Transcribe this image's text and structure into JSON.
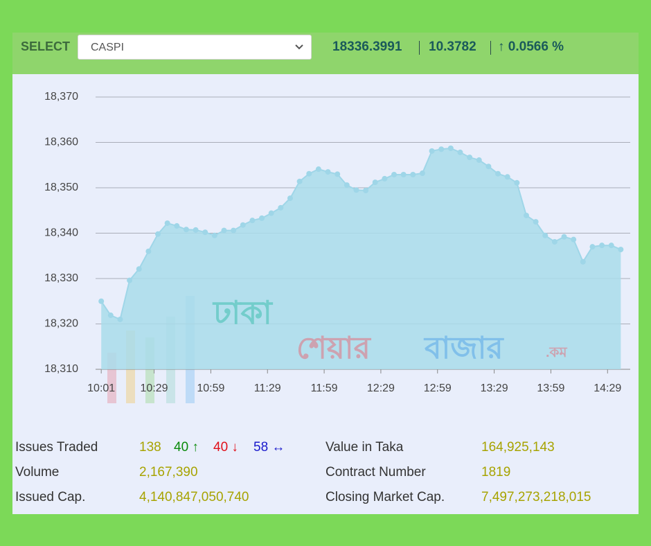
{
  "header": {
    "select_label": "SELECT",
    "selected": "CASPI",
    "index_value": "18336.3991",
    "change": "10.3782",
    "change_pct": "↑ 0.0566 %"
  },
  "chart_data": {
    "type": "area",
    "color": "#a9dcea",
    "line_color": "#9fd6e8",
    "grid": true,
    "x": [
      "10:01",
      "10:06",
      "10:11",
      "10:16",
      "10:21",
      "10:26",
      "10:31",
      "10:36",
      "10:41",
      "10:46",
      "10:51",
      "10:56",
      "11:01",
      "11:06",
      "11:11",
      "11:16",
      "11:21",
      "11:26",
      "11:31",
      "11:36",
      "11:41",
      "11:46",
      "11:51",
      "11:56",
      "12:01",
      "12:06",
      "12:11",
      "12:16",
      "12:21",
      "12:26",
      "12:31",
      "12:36",
      "12:41",
      "12:46",
      "12:51",
      "12:56",
      "13:01",
      "13:06",
      "13:11",
      "13:16",
      "13:21",
      "13:26",
      "13:31",
      "13:36",
      "13:41",
      "13:46",
      "13:51",
      "13:56",
      "14:01",
      "14:06",
      "14:11",
      "14:16",
      "14:21",
      "14:26",
      "14:31",
      "14:36"
    ],
    "values": [
      18325.0,
      18321.9,
      18321.0,
      18329.6,
      18332.1,
      18336.0,
      18339.8,
      18342.2,
      18341.6,
      18340.8,
      18340.7,
      18340.2,
      18339.5,
      18340.6,
      18340.6,
      18341.8,
      18342.8,
      18343.3,
      18344.4,
      18345.6,
      18347.7,
      18351.4,
      18353.1,
      18354.1,
      18353.5,
      18353.0,
      18350.6,
      18349.5,
      18349.4,
      18351.2,
      18352.0,
      18352.9,
      18352.9,
      18352.9,
      18353.2,
      18358.1,
      18358.5,
      18358.7,
      18357.8,
      18356.7,
      18356.1,
      18354.7,
      18353.1,
      18352.4,
      18351.1,
      18343.9,
      18342.5,
      18339.5,
      18338.1,
      18339.2,
      18338.6,
      18333.7,
      18337.0,
      18337.3,
      18337.3,
      18336.4
    ],
    "xlim": [
      "09:58",
      "14:41"
    ],
    "xticks": [
      "10:01",
      "10:29",
      "10:59",
      "11:29",
      "11:59",
      "12:29",
      "12:59",
      "13:29",
      "13:59",
      "14:29"
    ],
    "ylim": [
      18310,
      18370
    ],
    "yticks": [
      {
        "value": 18310,
        "label": "18,310"
      },
      {
        "value": 18320,
        "label": "18,320"
      },
      {
        "value": 18330,
        "label": "18,330"
      },
      {
        "value": 18340,
        "label": "18,340"
      },
      {
        "value": 18350,
        "label": "18,350"
      },
      {
        "value": 18360,
        "label": "18,360"
      },
      {
        "value": 18370,
        "label": "18,370"
      }
    ],
    "watermark": [
      "ঢাকা",
      "শেয়ার",
      "বাজার",
      ".কম"
    ]
  },
  "stats": {
    "left": [
      [
        "Issues Traded",
        "138",
        "40 ↑",
        "40 ↓",
        "58 ↔"
      ],
      [
        "Volume",
        "2,167,390"
      ],
      [
        "Issued Cap.",
        "4,140,847,050,740"
      ]
    ],
    "right": [
      [
        "Value in Taka",
        "164,925,143"
      ],
      [
        "Contract Number",
        "1819"
      ],
      [
        "Closing Market Cap.",
        "7,497,273,218,015"
      ]
    ]
  }
}
